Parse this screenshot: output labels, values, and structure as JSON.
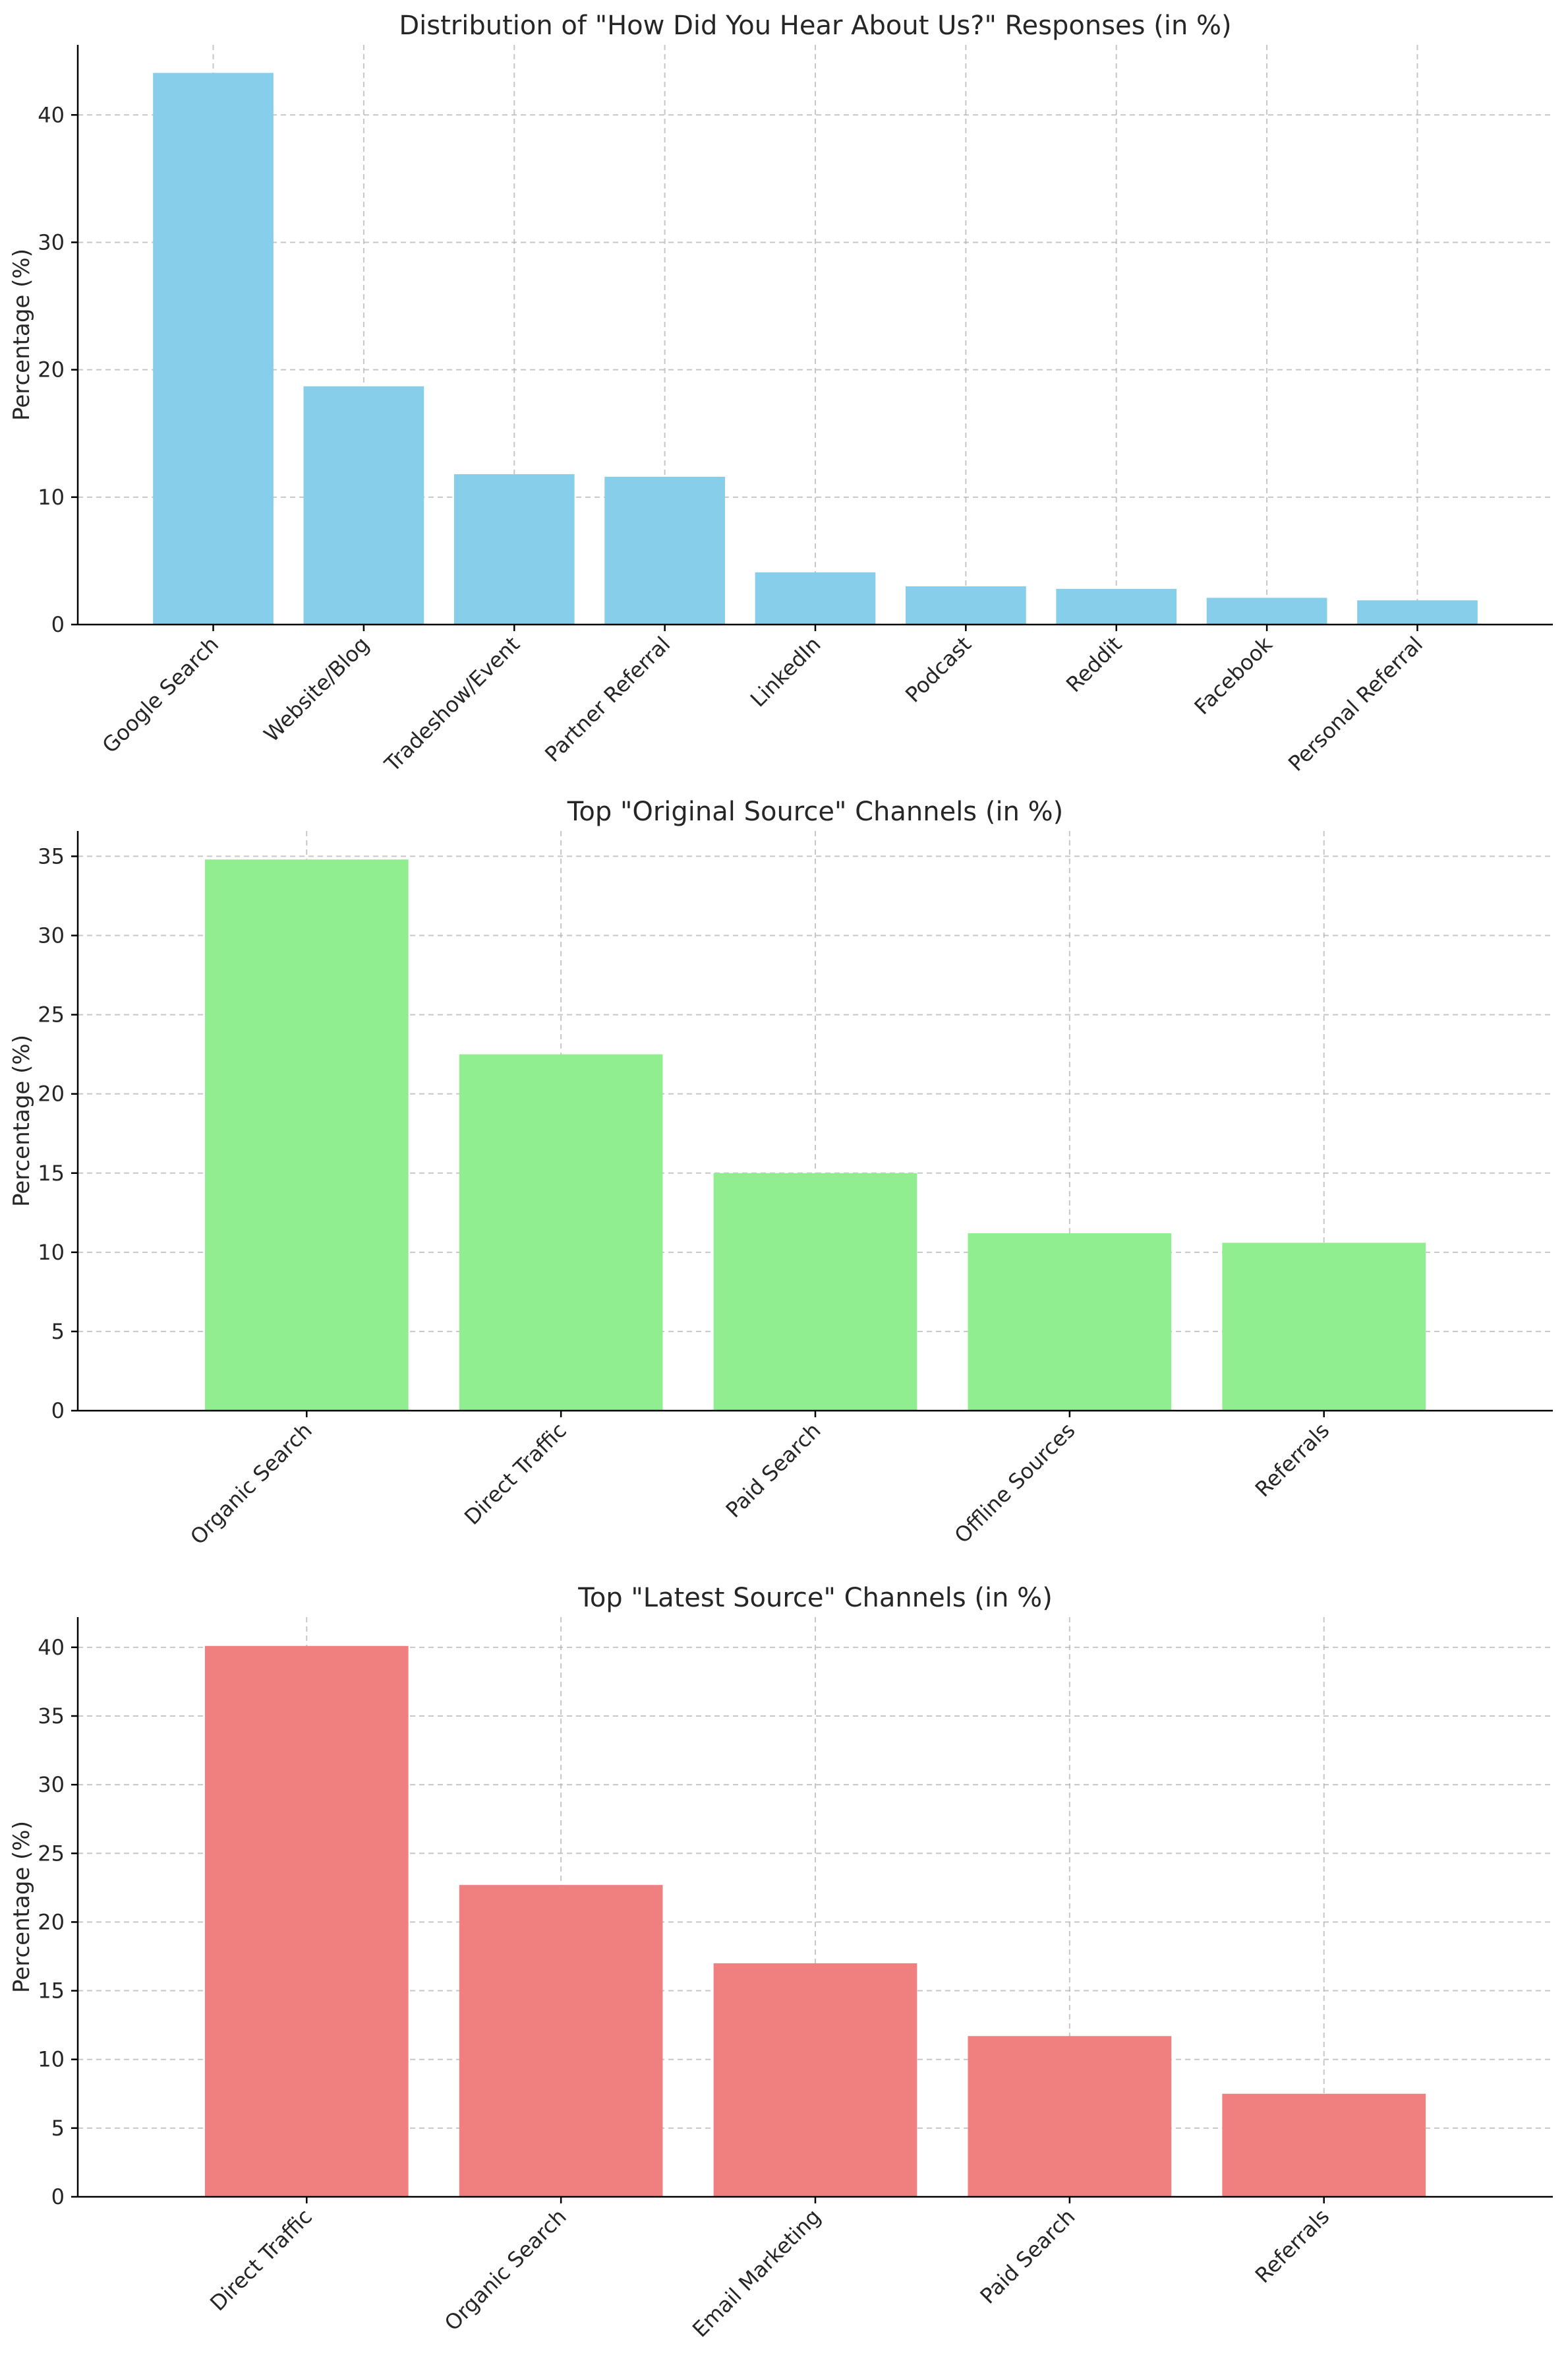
{
  "chart_data": [
    {
      "type": "bar",
      "title": "Distribution of \"How Did You Hear About Us?\" Responses (in %)",
      "xlabel": "",
      "ylabel": "Percentage (%)",
      "categories": [
        "Google Search",
        "Website/Blog",
        "Tradeshow/Event",
        "Partner Referral",
        "LinkedIn",
        "Podcast",
        "Reddit",
        "Facebook",
        "Personal Referral"
      ],
      "values": [
        43.3,
        18.7,
        11.8,
        11.6,
        4.1,
        3.0,
        2.8,
        2.1,
        1.9
      ],
      "ylim": [
        0,
        45.5
      ],
      "yticks": [
        0,
        10,
        20,
        30,
        40
      ],
      "color": "#87ceeb",
      "grid": true
    },
    {
      "type": "bar",
      "title": "Top \"Original Source\" Channels (in %)",
      "xlabel": "",
      "ylabel": "Percentage (%)",
      "categories": [
        "Organic Search",
        "Direct Traffic",
        "Paid Search",
        "Offline Sources",
        "Referrals"
      ],
      "values": [
        34.8,
        22.5,
        15.0,
        11.2,
        10.6
      ],
      "ylim": [
        0,
        36.6
      ],
      "yticks": [
        0,
        5,
        10,
        15,
        20,
        25,
        30,
        35
      ],
      "color": "#90ee90",
      "grid": true
    },
    {
      "type": "bar",
      "title": "Top \"Latest Source\" Channels (in %)",
      "xlabel": "",
      "ylabel": "Percentage (%)",
      "categories": [
        "Direct Traffic",
        "Organic Search",
        "Email Marketing",
        "Paid Search",
        "Referrals"
      ],
      "values": [
        40.1,
        22.7,
        17.0,
        11.7,
        7.5
      ],
      "ylim": [
        0,
        42.2
      ],
      "yticks": [
        0,
        5,
        10,
        15,
        20,
        25,
        30,
        35,
        40
      ],
      "color": "#f08080",
      "grid": true
    }
  ]
}
